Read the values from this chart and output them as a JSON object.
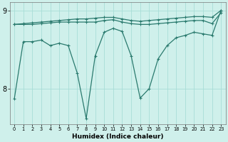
{
  "xlabel": "Humidex (Indice chaleur)",
  "x": [
    0,
    1,
    2,
    3,
    4,
    5,
    6,
    7,
    8,
    9,
    10,
    11,
    12,
    13,
    14,
    15,
    16,
    17,
    18,
    19,
    20,
    21,
    22,
    23
  ],
  "y_line1": [
    8.82,
    8.83,
    8.84,
    8.85,
    8.86,
    8.87,
    8.88,
    8.89,
    8.89,
    8.9,
    8.91,
    8.91,
    8.89,
    8.87,
    8.86,
    8.87,
    8.88,
    8.89,
    8.9,
    8.91,
    8.92,
    8.92,
    8.91,
    9.0
  ],
  "y_line2": [
    8.82,
    8.82,
    8.82,
    8.83,
    8.84,
    8.85,
    8.85,
    8.85,
    8.85,
    8.85,
    8.87,
    8.88,
    8.85,
    8.83,
    8.82,
    8.82,
    8.83,
    8.84,
    8.85,
    8.86,
    8.87,
    8.87,
    8.83,
    8.97
  ],
  "y_volatile": [
    7.87,
    8.6,
    8.6,
    8.62,
    8.55,
    8.58,
    8.55,
    8.2,
    7.62,
    8.42,
    8.72,
    8.77,
    8.73,
    8.42,
    7.88,
    8.0,
    8.38,
    8.55,
    8.65,
    8.68,
    8.72,
    8.7,
    8.68,
    9.0
  ],
  "ylim": [
    7.55,
    9.1
  ],
  "yticks": [
    8,
    9
  ],
  "ytick_labels": [
    "8",
    "9"
  ],
  "line_color": "#2a7a6e",
  "bg_color": "#cff0eb",
  "grid_color": "#a8ddd7",
  "markersize": 3.5,
  "linewidth": 0.9
}
